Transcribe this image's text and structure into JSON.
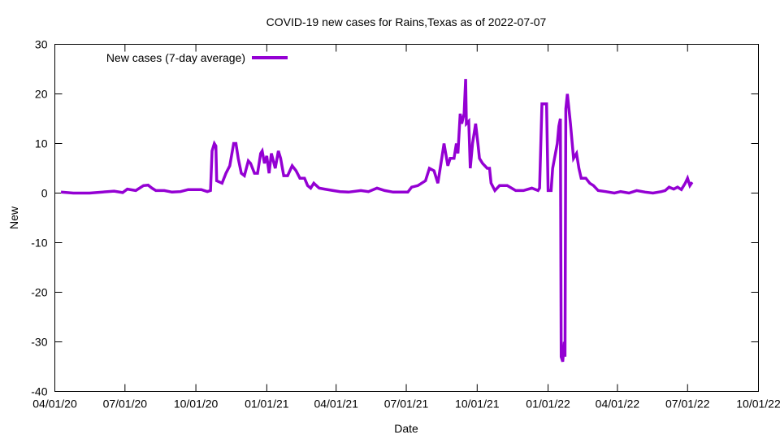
{
  "chart_data": {
    "type": "line",
    "title": "COVID-19 new cases for Rains,Texas as of 2022-07-07",
    "xlabel": "Date",
    "ylabel": "New",
    "xlim": [
      "2020-04-01",
      "2022-10-01"
    ],
    "ylim": [
      -40,
      30
    ],
    "yticks": [
      -40,
      -30,
      -20,
      -10,
      0,
      10,
      20,
      30
    ],
    "xticks": [
      {
        "date": "2020-04-01",
        "label": "04/01/20"
      },
      {
        "date": "2020-07-01",
        "label": "07/01/20"
      },
      {
        "date": "2020-10-01",
        "label": "10/01/20"
      },
      {
        "date": "2021-01-01",
        "label": "01/01/21"
      },
      {
        "date": "2021-04-01",
        "label": "04/01/21"
      },
      {
        "date": "2021-07-01",
        "label": "07/01/21"
      },
      {
        "date": "2021-10-01",
        "label": "10/01/21"
      },
      {
        "date": "2022-01-01",
        "label": "01/01/22"
      },
      {
        "date": "2022-04-01",
        "label": "04/01/22"
      },
      {
        "date": "2022-07-01",
        "label": "07/01/22"
      },
      {
        "date": "2022-10-01",
        "label": "10/01/22"
      }
    ],
    "grid": false,
    "legend_position": "top-left",
    "series": [
      {
        "name": "New cases (7-day average)",
        "color": "#9400d3",
        "points": [
          [
            "2020-04-09",
            0.2
          ],
          [
            "2020-04-25",
            0
          ],
          [
            "2020-05-16",
            0
          ],
          [
            "2020-06-17",
            0.4
          ],
          [
            "2020-06-28",
            0.1
          ],
          [
            "2020-07-04",
            0.8
          ],
          [
            "2020-07-15",
            0.5
          ],
          [
            "2020-07-25",
            1.5
          ],
          [
            "2020-07-31",
            1.6
          ],
          [
            "2020-08-05",
            1
          ],
          [
            "2020-08-10",
            0.5
          ],
          [
            "2020-08-21",
            0.5
          ],
          [
            "2020-08-31",
            0.2
          ],
          [
            "2020-09-11",
            0.3
          ],
          [
            "2020-09-21",
            0.7
          ],
          [
            "2020-10-08",
            0.7
          ],
          [
            "2020-10-16",
            0.3
          ],
          [
            "2020-10-20",
            0.5
          ],
          [
            "2020-10-22",
            8.5
          ],
          [
            "2020-10-25",
            10
          ],
          [
            "2020-10-27",
            9.5
          ],
          [
            "2020-10-28",
            2.5
          ],
          [
            "2020-11-04",
            2
          ],
          [
            "2020-11-09",
            4
          ],
          [
            "2020-11-14",
            5.5
          ],
          [
            "2020-11-19",
            10
          ],
          [
            "2020-11-22",
            10
          ],
          [
            "2020-11-25",
            7
          ],
          [
            "2020-11-29",
            4
          ],
          [
            "2020-12-03",
            3.5
          ],
          [
            "2020-12-08",
            6.5
          ],
          [
            "2020-12-11",
            6
          ],
          [
            "2020-12-16",
            4
          ],
          [
            "2020-12-20",
            4
          ],
          [
            "2020-12-24",
            8
          ],
          [
            "2020-12-26",
            8.5
          ],
          [
            "2020-12-29",
            6
          ],
          [
            "2021-01-01",
            7.5
          ],
          [
            "2021-01-04",
            4
          ],
          [
            "2021-01-07",
            8
          ],
          [
            "2021-01-12",
            5
          ],
          [
            "2021-01-16",
            8.5
          ],
          [
            "2021-01-19",
            7
          ],
          [
            "2021-01-23",
            3.5
          ],
          [
            "2021-01-28",
            3.5
          ],
          [
            "2021-02-03",
            5.5
          ],
          [
            "2021-02-08",
            4.5
          ],
          [
            "2021-02-13",
            3
          ],
          [
            "2021-02-19",
            3
          ],
          [
            "2021-02-23",
            1.5
          ],
          [
            "2021-02-27",
            1
          ],
          [
            "2021-03-03",
            2
          ],
          [
            "2021-03-10",
            1
          ],
          [
            "2021-03-17",
            0.8
          ],
          [
            "2021-03-28",
            0.5
          ],
          [
            "2021-04-06",
            0.3
          ],
          [
            "2021-04-17",
            0.2
          ],
          [
            "2021-05-03",
            0.5
          ],
          [
            "2021-05-13",
            0.3
          ],
          [
            "2021-05-24",
            1
          ],
          [
            "2021-06-03",
            0.5
          ],
          [
            "2021-06-14",
            0.2
          ],
          [
            "2021-07-03",
            0.2
          ],
          [
            "2021-07-08",
            1.2
          ],
          [
            "2021-07-16",
            1.5
          ],
          [
            "2021-07-21",
            2
          ],
          [
            "2021-07-26",
            2.5
          ],
          [
            "2021-07-31",
            5
          ],
          [
            "2021-08-06",
            4.5
          ],
          [
            "2021-08-11",
            2
          ],
          [
            "2021-08-16",
            7
          ],
          [
            "2021-08-19",
            10
          ],
          [
            "2021-08-24",
            5.5
          ],
          [
            "2021-08-27",
            7
          ],
          [
            "2021-09-01",
            7
          ],
          [
            "2021-09-04",
            10
          ],
          [
            "2021-09-06",
            8
          ],
          [
            "2021-09-09",
            16
          ],
          [
            "2021-09-11",
            14
          ],
          [
            "2021-09-14",
            16
          ],
          [
            "2021-09-16",
            23
          ],
          [
            "2021-09-17",
            14
          ],
          [
            "2021-09-20",
            14.5
          ],
          [
            "2021-09-22",
            5
          ],
          [
            "2021-09-25",
            10
          ],
          [
            "2021-09-29",
            14
          ],
          [
            "2021-10-02",
            10
          ],
          [
            "2021-10-04",
            7
          ],
          [
            "2021-10-08",
            6
          ],
          [
            "2021-10-14",
            5
          ],
          [
            "2021-10-17",
            5
          ],
          [
            "2021-10-19",
            2
          ],
          [
            "2021-10-24",
            0.5
          ],
          [
            "2021-10-30",
            1.5
          ],
          [
            "2021-11-09",
            1.5
          ],
          [
            "2021-11-20",
            0.5
          ],
          [
            "2021-11-30",
            0.5
          ],
          [
            "2021-12-11",
            1
          ],
          [
            "2021-12-19",
            0.5
          ],
          [
            "2021-12-21",
            1
          ],
          [
            "2021-12-24",
            18
          ],
          [
            "2021-12-30",
            18
          ],
          [
            "2022-01-01",
            0.5
          ],
          [
            "2022-01-05",
            0.5
          ],
          [
            "2022-01-07",
            5
          ],
          [
            "2022-01-13",
            10
          ],
          [
            "2022-01-15",
            13.5
          ],
          [
            "2022-01-17",
            15
          ],
          [
            "2022-01-18",
            -33
          ],
          [
            "2022-01-20",
            -34
          ],
          [
            "2022-01-22",
            -30
          ],
          [
            "2022-01-23",
            -33
          ],
          [
            "2022-01-24",
            17
          ],
          [
            "2022-01-26",
            20
          ],
          [
            "2022-01-30",
            14
          ],
          [
            "2022-02-03",
            7
          ],
          [
            "2022-02-07",
            8
          ],
          [
            "2022-02-10",
            5
          ],
          [
            "2022-02-13",
            3
          ],
          [
            "2022-02-19",
            3
          ],
          [
            "2022-02-24",
            2
          ],
          [
            "2022-03-01",
            1.5
          ],
          [
            "2022-03-07",
            0.5
          ],
          [
            "2022-03-17",
            0.3
          ],
          [
            "2022-03-28",
            0
          ],
          [
            "2022-04-05",
            0.3
          ],
          [
            "2022-04-16",
            0
          ],
          [
            "2022-04-26",
            0.5
          ],
          [
            "2022-05-07",
            0.2
          ],
          [
            "2022-05-17",
            0
          ],
          [
            "2022-05-28",
            0.3
          ],
          [
            "2022-06-02",
            0.5
          ],
          [
            "2022-06-07",
            1.2
          ],
          [
            "2022-06-13",
            0.8
          ],
          [
            "2022-06-18",
            1.2
          ],
          [
            "2022-06-23",
            0.7
          ],
          [
            "2022-06-28",
            2
          ],
          [
            "2022-07-01",
            3
          ],
          [
            "2022-07-04",
            1.5
          ],
          [
            "2022-07-07",
            2.2
          ]
        ]
      }
    ]
  }
}
